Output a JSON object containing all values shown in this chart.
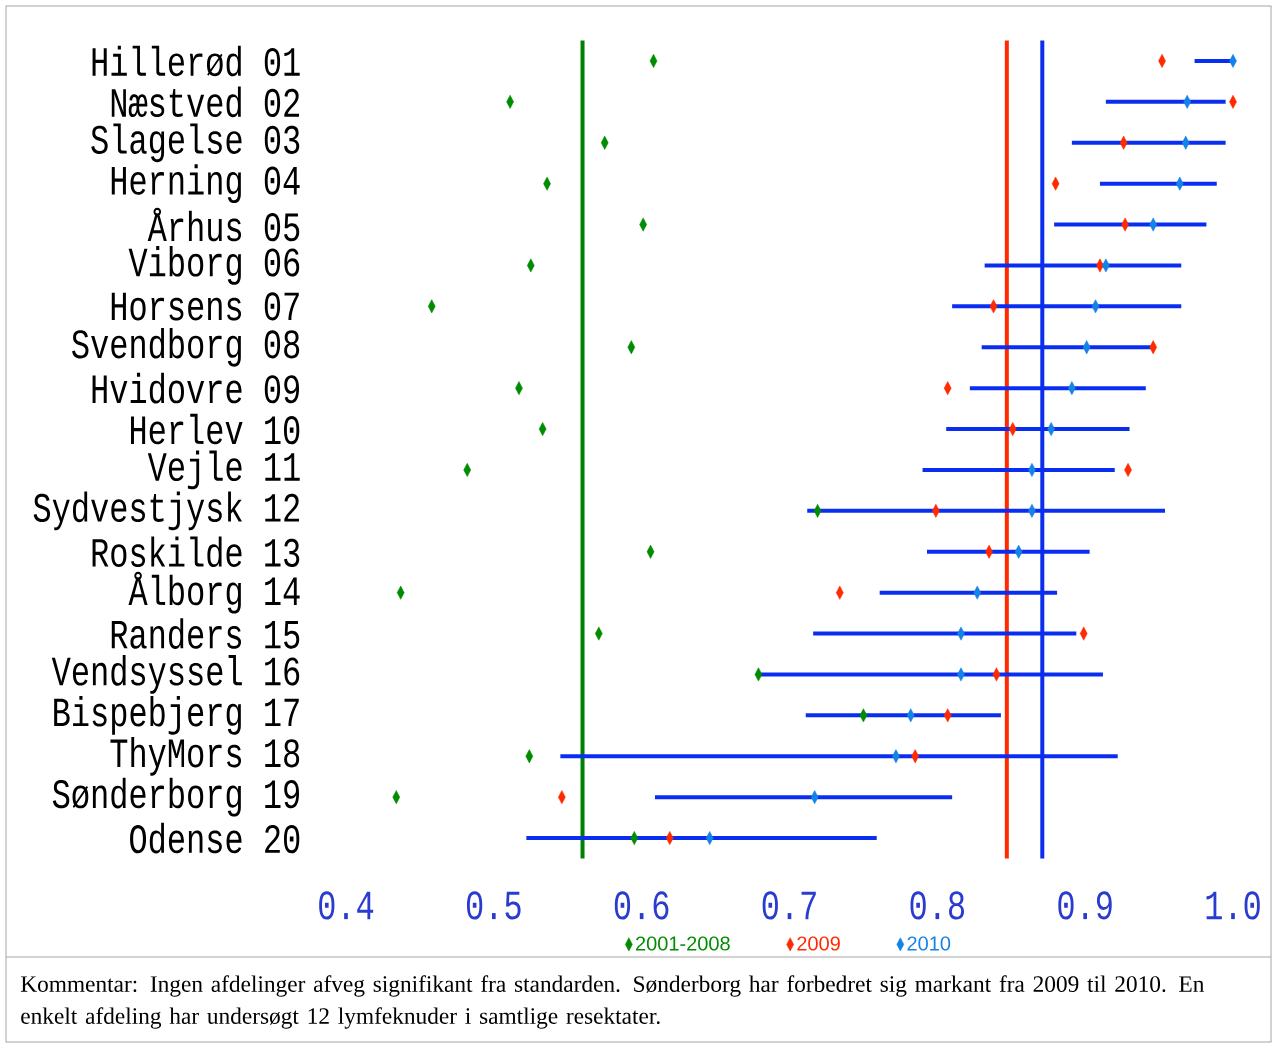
{
  "chart_data": {
    "type": "scatter",
    "orientation": "horizontal",
    "categories": [
      "Hillerød 01",
      "Næstved 02",
      "Slagelse 03",
      "Herning 04",
      "Århus 05",
      "Viborg 06",
      "Horsens 07",
      "Svendborg 08",
      "Hvidovre 09",
      "Herlev 10",
      "Vejle 11",
      "Sydvestjysk 12",
      "Roskilde 13",
      "Ålborg 14",
      "Randers 15",
      "Vendsyssel 16",
      "Bispebjerg 17",
      "ThyMors 18",
      "Sønderborg 19",
      "Odense 20"
    ],
    "series": [
      {
        "name": "2001-2008",
        "color": "#008c00",
        "values": [
          0.608,
          0.511,
          0.575,
          0.536,
          0.601,
          0.525,
          0.458,
          0.593,
          0.517,
          0.533,
          0.482,
          0.719,
          0.606,
          0.437,
          0.571,
          0.679,
          0.75,
          0.524,
          0.434,
          0.595
        ]
      },
      {
        "name": "2009",
        "color": "#ff2a00",
        "values": [
          0.952,
          1.0,
          0.926,
          0.88,
          0.927,
          0.91,
          0.838,
          0.946,
          0.807,
          0.851,
          0.929,
          0.799,
          0.835,
          0.734,
          0.899,
          0.84,
          0.807,
          0.785,
          0.546,
          0.619
        ]
      },
      {
        "name": "2010",
        "color": "#1482e6",
        "values": [
          1.0,
          0.969,
          0.968,
          0.964,
          0.946,
          0.914,
          0.907,
          0.901,
          0.891,
          0.877,
          0.864,
          0.864,
          0.855,
          0.827,
          0.816,
          0.816,
          0.782,
          0.772,
          0.717,
          0.646
        ],
        "errors": [
          [
            0.974,
            1.0
          ],
          [
            0.914,
            0.995
          ],
          [
            0.891,
            0.995
          ],
          [
            0.91,
            0.989
          ],
          [
            0.879,
            0.982
          ],
          [
            0.832,
            0.965
          ],
          [
            0.81,
            0.965
          ],
          [
            0.83,
            0.946
          ],
          [
            0.822,
            0.941
          ],
          [
            0.806,
            0.93
          ],
          [
            0.79,
            0.92
          ],
          [
            0.712,
            0.954
          ],
          [
            0.793,
            0.903
          ],
          [
            0.761,
            0.881
          ],
          [
            0.716,
            0.894
          ],
          [
            0.679,
            0.912
          ],
          [
            0.711,
            0.843
          ],
          [
            0.545,
            0.922
          ],
          [
            0.609,
            0.81
          ],
          [
            0.522,
            0.759
          ]
        ]
      }
    ],
    "xlim": [
      0.4,
      1.0
    ],
    "xticks": [
      0.4,
      0.5,
      0.6,
      0.7,
      0.8,
      0.9,
      {
        "value": 1.0,
        "label": "1.0"
      }
    ],
    "ref_lines": [
      {
        "axis": "x",
        "value": 0.56,
        "color": "#008000"
      },
      {
        "axis": "x",
        "value": 0.847,
        "color": "#ff2a00"
      },
      {
        "axis": "x",
        "value": 0.871,
        "color": "#0a2ef0"
      }
    ],
    "marker": "diamond",
    "legend": "bottom",
    "grid": false,
    "annotations": [
      "Kommentar: Ingen afdelinger afveg signifikant fra standarden. Sønderborg har forbedret sig markant fra 2009 til 2010. En enkelt afdeling har undersøgt 12 lymfeknuder i samtlige resektater."
    ]
  }
}
